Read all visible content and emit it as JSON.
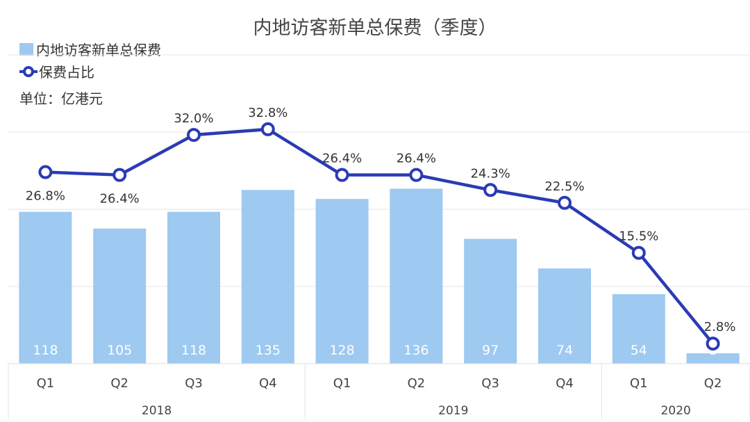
{
  "chart_data": {
    "type": "bar",
    "title": "内地访客新单总保费（季度）",
    "unit_label": "单位：亿港元",
    "categories": [
      "Q1",
      "Q2",
      "Q3",
      "Q4",
      "Q1",
      "Q2",
      "Q3",
      "Q4",
      "Q1",
      "Q2"
    ],
    "groups": [
      {
        "label": "2018",
        "count": 4
      },
      {
        "label": "2019",
        "count": 4
      },
      {
        "label": "2020",
        "count": 2
      }
    ],
    "ylim": [
      0,
      240
    ],
    "y2lim": [
      0,
      43.2
    ],
    "grid": true,
    "legend_position": "top-left",
    "series": [
      {
        "name": "内地访客新单总保费",
        "type": "bar",
        "color": "#9ec9f0",
        "values": [
          118,
          105,
          118,
          135,
          128,
          136,
          97,
          74,
          54,
          8
        ]
      },
      {
        "name": "保费占比",
        "type": "line",
        "axis": "secondary",
        "color": "#2b3bb5",
        "values": [
          26.8,
          26.4,
          32.0,
          32.8,
          26.4,
          26.4,
          24.3,
          22.5,
          15.5,
          2.8
        ],
        "labels": [
          "26.8%",
          "26.4%",
          "32.0%",
          "32.8%",
          "26.4%",
          "26.4%",
          "24.3%",
          "22.5%",
          "15.5%",
          "2.8%"
        ]
      }
    ]
  }
}
